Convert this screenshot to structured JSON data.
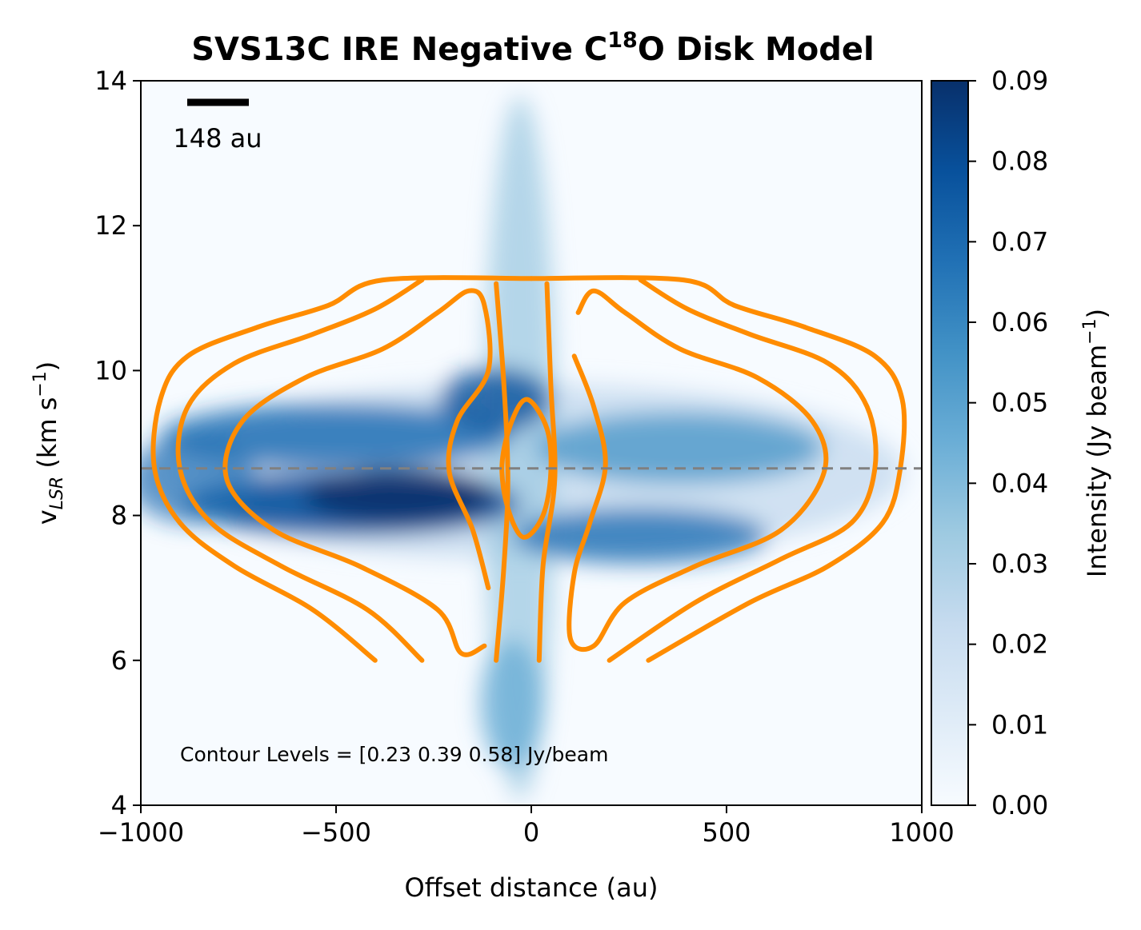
{
  "chart_data": {
    "type": "heatmap",
    "title": {
      "main": "SVS13C IRE Negative C",
      "sup": "18",
      "tail": "O Disk Model"
    },
    "xlabel": "Offset distance (au)",
    "ylabel": {
      "base": "v",
      "sub": "LSR",
      "rest": " (km s",
      "sup": "−1",
      "close": ")"
    },
    "xlim": [
      -1000,
      1000
    ],
    "ylim": [
      4,
      14
    ],
    "xticks": [
      -1000,
      -500,
      0,
      500,
      1000
    ],
    "xtick_labels": [
      "−1000",
      "−500",
      "0",
      "500",
      "1000"
    ],
    "yticks": [
      4,
      6,
      8,
      10,
      12,
      14
    ],
    "ytick_labels": [
      "4",
      "6",
      "8",
      "10",
      "12",
      "14"
    ],
    "colormap": "Blues",
    "colorbar": {
      "range": [
        0.0,
        0.09
      ],
      "ticks": [
        0.0,
        0.01,
        0.02,
        0.03,
        0.04,
        0.05,
        0.06,
        0.07,
        0.08,
        0.09
      ],
      "tick_labels": [
        "0.00",
        "0.01",
        "0.02",
        "0.03",
        "0.04",
        "0.05",
        "0.06",
        "0.07",
        "0.08",
        "0.09"
      ],
      "label": {
        "base": "Intensity (Jy beam",
        "sup": "−1",
        "close": ")"
      }
    },
    "systemic_velocity": 8.65,
    "scale_bar": {
      "label": "148 au"
    },
    "annotation": "Contour Levels = [0.23 0.39 0.58] Jy/beam",
    "contour_color": "#ff8c00",
    "contour_levels": [
      0.23,
      0.39,
      0.58
    ],
    "contours": [
      {
        "name": "outer-left",
        "points": [
          [
            -400,
            6.0
          ],
          [
            -560,
            6.7
          ],
          [
            -760,
            7.3
          ],
          [
            -900,
            7.9
          ],
          [
            -965,
            8.65
          ],
          [
            -950,
            9.6
          ],
          [
            -880,
            10.2
          ],
          [
            -700,
            10.6
          ],
          [
            -520,
            10.9
          ],
          [
            -380,
            11.25
          ],
          [
            0,
            11.27
          ]
        ]
      },
      {
        "name": "outer-right",
        "points": [
          [
            0,
            11.27
          ],
          [
            390,
            11.25
          ],
          [
            520,
            10.9
          ],
          [
            700,
            10.6
          ],
          [
            880,
            10.2
          ],
          [
            950,
            9.6
          ],
          [
            945,
            8.65
          ],
          [
            900,
            7.9
          ],
          [
            760,
            7.3
          ],
          [
            560,
            6.8
          ],
          [
            300,
            6.0
          ]
        ]
      },
      {
        "name": "middle-left",
        "points": [
          [
            -280,
            6.0
          ],
          [
            -420,
            6.7
          ],
          [
            -640,
            7.3
          ],
          [
            -820,
            7.9
          ],
          [
            -900,
            8.65
          ],
          [
            -880,
            9.5
          ],
          [
            -760,
            10.1
          ],
          [
            -560,
            10.5
          ],
          [
            -400,
            10.85
          ],
          [
            -280,
            11.25
          ]
        ]
      },
      {
        "name": "middle-right",
        "points": [
          [
            280,
            11.25
          ],
          [
            400,
            10.85
          ],
          [
            560,
            10.5
          ],
          [
            760,
            10.1
          ],
          [
            860,
            9.5
          ],
          [
            880,
            8.65
          ],
          [
            820,
            7.9
          ],
          [
            640,
            7.4
          ],
          [
            420,
            6.8
          ],
          [
            200,
            6.0
          ]
        ]
      },
      {
        "name": "inner-left",
        "points": [
          [
            -120,
            6.2
          ],
          [
            -180,
            6.1
          ],
          [
            -240,
            6.7
          ],
          [
            -440,
            7.3
          ],
          [
            -660,
            7.8
          ],
          [
            -780,
            8.5
          ],
          [
            -740,
            9.3
          ],
          [
            -580,
            9.9
          ],
          [
            -380,
            10.3
          ],
          [
            -240,
            10.8
          ],
          [
            -160,
            11.1
          ],
          [
            -120,
            10.9
          ],
          [
            -110,
            10.0
          ],
          [
            -190,
            9.3
          ],
          [
            -210,
            8.6
          ],
          [
            -150,
            7.8
          ],
          [
            -110,
            7.0
          ]
        ]
      },
      {
        "name": "inner-right",
        "points": [
          [
            120,
            10.8
          ],
          [
            160,
            11.1
          ],
          [
            240,
            10.8
          ],
          [
            380,
            10.3
          ],
          [
            580,
            9.9
          ],
          [
            720,
            9.3
          ],
          [
            750,
            8.6
          ],
          [
            640,
            7.8
          ],
          [
            420,
            7.3
          ],
          [
            240,
            6.8
          ],
          [
            160,
            6.2
          ],
          [
            100,
            6.3
          ],
          [
            110,
            7.2
          ],
          [
            150,
            7.9
          ],
          [
            190,
            8.7
          ],
          [
            160,
            9.5
          ],
          [
            110,
            10.2
          ]
        ]
      },
      {
        "name": "center-left",
        "points": [
          [
            -90,
            6.0
          ],
          [
            -70,
            7.3
          ],
          [
            -60,
            8.5
          ],
          [
            -70,
            9.8
          ],
          [
            -90,
            11.2
          ]
        ]
      },
      {
        "name": "center-right",
        "points": [
          [
            20,
            6.0
          ],
          [
            30,
            7.3
          ],
          [
            60,
            8.5
          ],
          [
            50,
            9.8
          ],
          [
            40,
            11.2
          ]
        ]
      },
      {
        "name": "center-ring",
        "points": [
          [
            -10,
            9.6
          ],
          [
            40,
            9.2
          ],
          [
            50,
            8.6
          ],
          [
            30,
            8.0
          ],
          [
            -20,
            7.7
          ],
          [
            -60,
            8.1
          ],
          [
            -75,
            8.7
          ],
          [
            -50,
            9.3
          ]
        ]
      }
    ]
  }
}
